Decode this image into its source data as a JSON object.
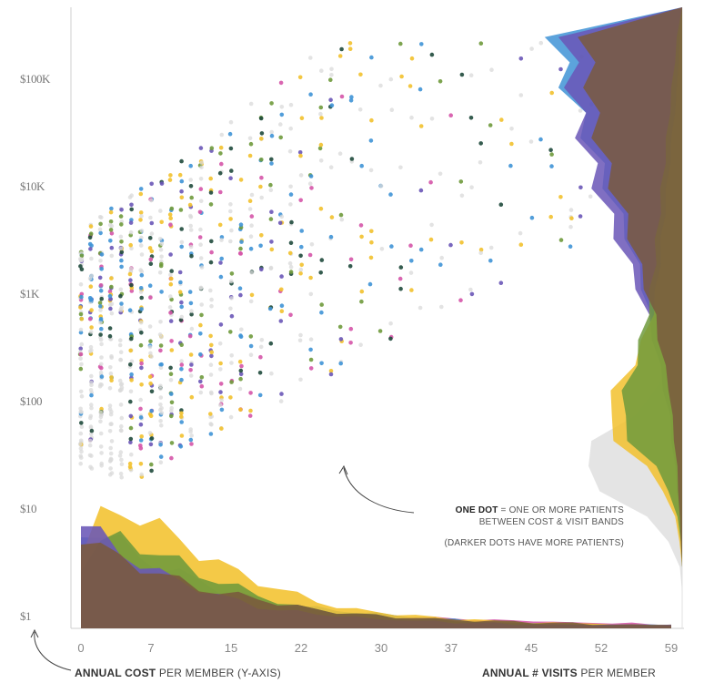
{
  "chart_data": {
    "type": "scatter",
    "title": "",
    "y_scale": "log",
    "ylim": [
      1,
      300000
    ],
    "xlim": [
      0,
      60
    ],
    "y_ticks": [
      "$1",
      "$10",
      "$100",
      "$1K",
      "$10K",
      "$100K"
    ],
    "y_tick_values": [
      1,
      10,
      100,
      1000,
      10000,
      100000
    ],
    "x_ticks": [
      "0",
      "7",
      "15",
      "22",
      "30",
      "37",
      "45",
      "52",
      "59"
    ],
    "x_tick_values": [
      0,
      7,
      15,
      22,
      30,
      37,
      45,
      52,
      59
    ],
    "xlabel_bold": "ANNUAL # VISITS",
    "xlabel_rest": " PER MEMBER",
    "ylabel_bold": "ANNUAL COST",
    "ylabel_rest": " PER MEMBER (Y-AXIS)",
    "annotation": {
      "line1_bold": "ONE DOT",
      "line1_rest": " = ONE OR MORE PATIENTS",
      "line2": "BETWEEN COST & VISIT BANDS",
      "line3": "(DARKER DOTS HAVE MORE PATIENTS)"
    },
    "colors": {
      "gray": "#d9d9d9",
      "blue": "#3f93d6",
      "yellow": "#f2c12e",
      "green": "#6f9a3c",
      "pink": "#d555a8",
      "purple": "#6a56b7",
      "brown": "#7a5a3e",
      "dark": "#1f4a3c"
    },
    "series": [
      {
        "color_key": "blue",
        "visit_density": [
          55,
          52,
          46,
          40,
          34,
          30,
          26,
          22,
          19,
          16,
          14,
          12,
          11,
          10,
          9,
          8,
          7,
          6,
          5,
          5,
          4,
          4,
          3,
          3,
          3,
          2,
          2,
          2,
          2,
          2,
          2
        ],
        "cost_density": [
          0,
          0,
          0,
          1,
          2,
          4,
          6,
          8,
          10,
          14,
          18,
          22,
          26,
          30,
          36,
          42,
          50,
          58,
          66,
          74,
          82,
          90,
          96,
          100
        ]
      },
      {
        "color_key": "yellow",
        "visit_density": [
          40,
          60,
          65,
          62,
          55,
          48,
          42,
          36,
          30,
          26,
          22,
          18,
          15,
          12,
          10,
          9,
          8,
          7,
          6,
          5,
          5,
          4,
          4,
          3,
          3,
          3,
          3,
          2,
          2,
          2,
          2
        ],
        "cost_density": [
          0,
          0,
          0,
          2,
          6,
          14,
          30,
          50,
          60,
          52,
          40,
          30,
          24,
          20,
          18,
          16,
          14,
          12,
          10,
          8,
          6,
          4,
          3,
          2
        ]
      },
      {
        "color_key": "green",
        "visit_density": [
          35,
          45,
          50,
          46,
          40,
          36,
          30,
          26,
          22,
          18,
          15,
          12,
          10,
          9,
          8,
          7,
          6,
          5,
          5,
          4,
          4,
          3,
          3,
          3,
          2,
          2,
          2,
          2,
          2,
          2,
          2
        ],
        "cost_density": [
          0,
          0,
          0,
          1,
          4,
          10,
          22,
          40,
          48,
          44,
          38,
          32,
          28,
          24,
          22,
          20,
          18,
          16,
          14,
          12,
          10,
          8,
          6,
          4
        ]
      },
      {
        "color_key": "pink",
        "visit_density": [
          30,
          28,
          26,
          24,
          22,
          20,
          18,
          16,
          14,
          12,
          11,
          10,
          9,
          8,
          8,
          7,
          7,
          6,
          6,
          5,
          5,
          5,
          4,
          4,
          4,
          3,
          3,
          3,
          3,
          2,
          2
        ],
        "cost_density": [
          0,
          0,
          0,
          0,
          1,
          2,
          3,
          4,
          6,
          8,
          10,
          12,
          16,
          20,
          26,
          32,
          40,
          46,
          52,
          58,
          62,
          64,
          66,
          70
        ]
      },
      {
        "color_key": "purple",
        "visit_density": [
          58,
          50,
          42,
          36,
          30,
          26,
          22,
          18,
          15,
          12,
          10,
          9,
          8,
          7,
          6,
          5,
          5,
          4,
          4,
          3,
          3,
          3,
          2,
          2,
          2,
          2,
          2,
          2,
          2,
          2,
          2
        ],
        "cost_density": [
          0,
          0,
          0,
          1,
          2,
          3,
          5,
          8,
          10,
          14,
          18,
          22,
          28,
          34,
          42,
          50,
          58,
          66,
          72,
          78,
          82,
          86,
          88,
          90
        ]
      },
      {
        "color_key": "brown",
        "visit_density": [
          52,
          44,
          38,
          34,
          30,
          26,
          22,
          20,
          18,
          16,
          14,
          12,
          10,
          9,
          8,
          7,
          6,
          6,
          5,
          5,
          4,
          4,
          4,
          3,
          3,
          3,
          2,
          2,
          2,
          2,
          2
        ],
        "cost_density": [
          0,
          0,
          0,
          1,
          2,
          3,
          4,
          6,
          8,
          10,
          14,
          18,
          22,
          28,
          34,
          40,
          46,
          54,
          60,
          66,
          70,
          72,
          74,
          76
        ]
      },
      {
        "color_key": "gray",
        "visit_density": [],
        "cost_density": [
          0,
          0,
          2,
          10,
          30,
          60,
          80,
          66,
          40,
          20,
          10,
          6,
          4,
          3,
          2,
          2,
          1,
          1,
          1,
          1,
          1,
          0,
          0,
          0
        ]
      }
    ]
  }
}
